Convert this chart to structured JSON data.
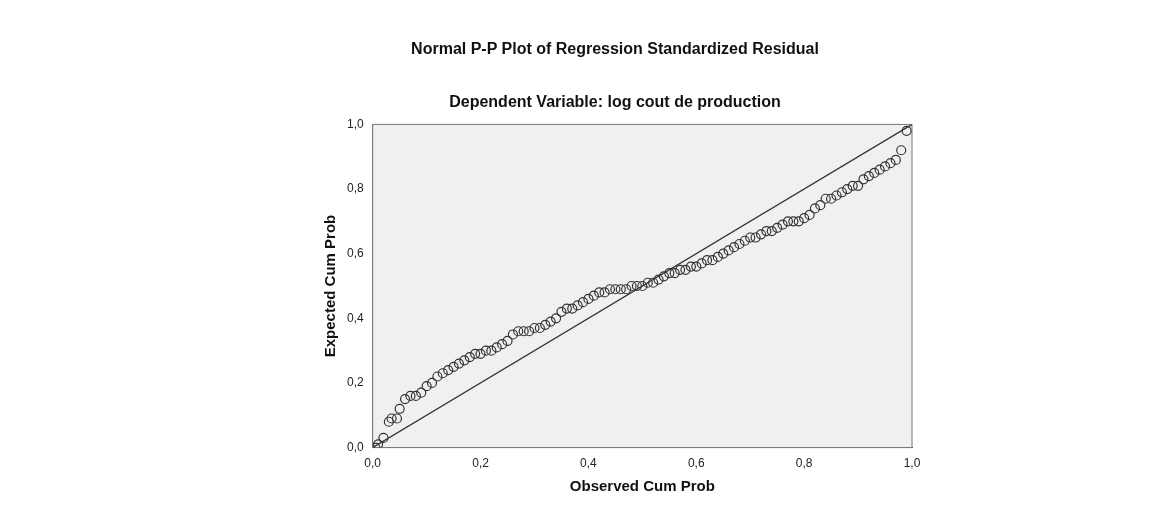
{
  "chart_data": {
    "type": "scatter",
    "title": "Normal P-P Plot of Regression Standardized Residual",
    "subtitle": "Dependent Variable: log cout de production",
    "xlabel": "Observed Cum Prob",
    "ylabel": "Expected Cum Prob",
    "xlim": [
      0,
      1
    ],
    "ylim": [
      0,
      1
    ],
    "xticks": [
      {
        "value": 0,
        "label": "0,0"
      },
      {
        "value": 0.2,
        "label": "0,2"
      },
      {
        "value": 0.4,
        "label": "0,4"
      },
      {
        "value": 0.6,
        "label": "0,6"
      },
      {
        "value": 0.8,
        "label": "0,8"
      },
      {
        "value": 1,
        "label": "1,0"
      }
    ],
    "yticks": [
      {
        "value": 0,
        "label": "0,0"
      },
      {
        "value": 0.2,
        "label": "0,2"
      },
      {
        "value": 0.4,
        "label": "0,4"
      },
      {
        "value": 0.6,
        "label": "0,6"
      },
      {
        "value": 0.8,
        "label": "0,8"
      },
      {
        "value": 1,
        "label": "1,0"
      }
    ],
    "grid": false,
    "legend": false,
    "marker": "circle",
    "series": [
      {
        "color": "#333333",
        "x": [
          0.005,
          0.01,
          0.02,
          0.03,
          0.035,
          0.045,
          0.05,
          0.06,
          0.07,
          0.08,
          0.09,
          0.1,
          0.11,
          0.12,
          0.13,
          0.14,
          0.15,
          0.16,
          0.17,
          0.18,
          0.19,
          0.2,
          0.21,
          0.22,
          0.23,
          0.24,
          0.25,
          0.26,
          0.27,
          0.28,
          0.29,
          0.3,
          0.31,
          0.32,
          0.33,
          0.34,
          0.35,
          0.36,
          0.37,
          0.38,
          0.39,
          0.4,
          0.41,
          0.42,
          0.43,
          0.44,
          0.45,
          0.46,
          0.47,
          0.48,
          0.49,
          0.5,
          0.51,
          0.52,
          0.53,
          0.54,
          0.55,
          0.56,
          0.57,
          0.58,
          0.59,
          0.6,
          0.61,
          0.62,
          0.63,
          0.64,
          0.65,
          0.66,
          0.67,
          0.68,
          0.69,
          0.7,
          0.71,
          0.72,
          0.73,
          0.74,
          0.75,
          0.76,
          0.77,
          0.78,
          0.79,
          0.8,
          0.81,
          0.82,
          0.83,
          0.84,
          0.85,
          0.86,
          0.87,
          0.88,
          0.89,
          0.9,
          0.91,
          0.92,
          0.93,
          0.94,
          0.95,
          0.96,
          0.97,
          0.98,
          0.99
        ],
        "values": [
          0.0,
          0.01,
          0.03,
          0.08,
          0.09,
          0.09,
          0.12,
          0.15,
          0.16,
          0.16,
          0.17,
          0.19,
          0.2,
          0.22,
          0.23,
          0.24,
          0.25,
          0.26,
          0.27,
          0.28,
          0.29,
          0.29,
          0.3,
          0.3,
          0.31,
          0.32,
          0.33,
          0.35,
          0.36,
          0.36,
          0.36,
          0.37,
          0.37,
          0.38,
          0.39,
          0.4,
          0.42,
          0.43,
          0.43,
          0.44,
          0.45,
          0.46,
          0.47,
          0.48,
          0.48,
          0.49,
          0.49,
          0.49,
          0.49,
          0.5,
          0.5,
          0.5,
          0.51,
          0.51,
          0.52,
          0.53,
          0.54,
          0.54,
          0.55,
          0.55,
          0.56,
          0.56,
          0.57,
          0.58,
          0.58,
          0.59,
          0.6,
          0.61,
          0.62,
          0.63,
          0.64,
          0.65,
          0.65,
          0.66,
          0.67,
          0.67,
          0.68,
          0.69,
          0.7,
          0.7,
          0.7,
          0.71,
          0.72,
          0.74,
          0.75,
          0.77,
          0.77,
          0.78,
          0.79,
          0.8,
          0.81,
          0.81,
          0.83,
          0.84,
          0.85,
          0.86,
          0.87,
          0.88,
          0.89,
          0.92,
          0.98
        ]
      },
      {
        "type": "line",
        "color": "#333333",
        "marker": "none",
        "x": [
          0,
          1
        ],
        "values": [
          0,
          1
        ]
      }
    ]
  }
}
